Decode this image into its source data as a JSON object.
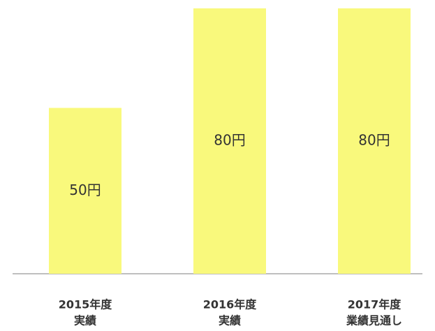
{
  "chart_data": {
    "type": "bar",
    "categories": [
      [
        "2015年度",
        "実績"
      ],
      [
        "2016年度",
        "実績"
      ],
      [
        "2017年度",
        "業績見通し"
      ]
    ],
    "values": [
      50,
      80,
      80
    ],
    "value_labels": [
      "50円",
      "80円",
      "80円"
    ],
    "color": "#f9f97c",
    "ylim": [
      0,
      80
    ]
  }
}
